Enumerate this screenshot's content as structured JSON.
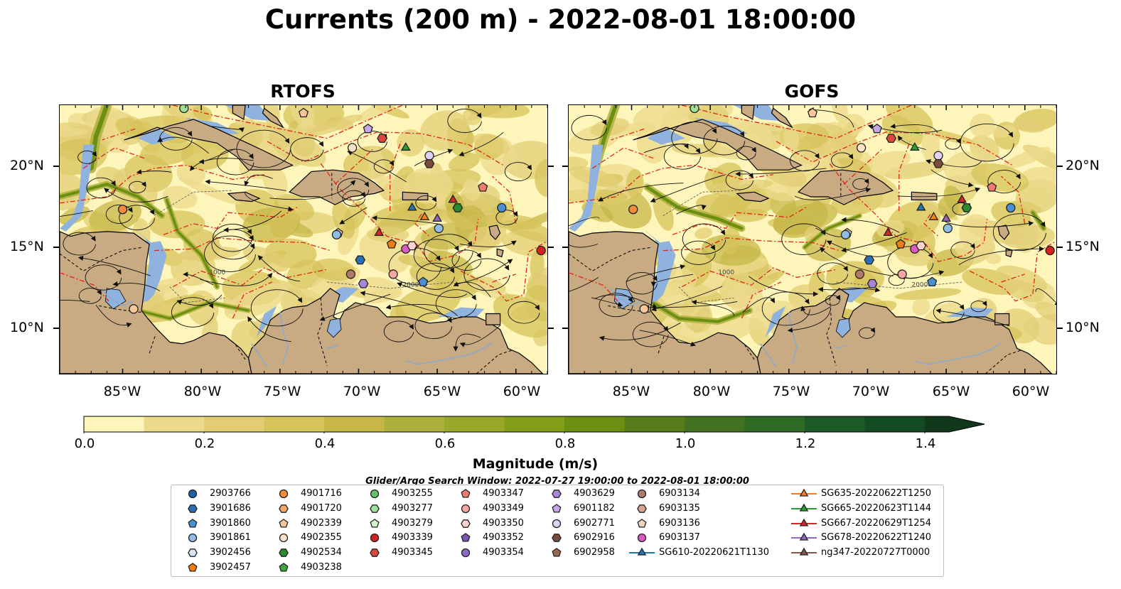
{
  "title": "Currents (200 m) - 2022-08-01 18:00:00",
  "panels": [
    {
      "title": "RTOFS"
    },
    {
      "title": "GOFS"
    }
  ],
  "x_ticks": [
    "85°W",
    "80°W",
    "75°W",
    "70°W",
    "65°W",
    "60°W"
  ],
  "y_ticks": [
    "20°N",
    "15°N",
    "10°N"
  ],
  "map_extent": {
    "lon": [
      -89,
      -58
    ],
    "lat": [
      7,
      24
    ]
  },
  "bathymetry_labels": [
    "1000",
    "2000"
  ],
  "colors": {
    "land": "#c8ab82",
    "shelf_water": "#8fb2de",
    "eez_lines": "#e2231a",
    "streamlines": "#000000"
  },
  "colorbar": {
    "label": "Magnitude (m/s)",
    "tick_labels": [
      "0.0",
      "0.2",
      "0.4",
      "0.6",
      "0.8",
      "1.0",
      "1.2",
      "1.4"
    ],
    "range": [
      0,
      1.5
    ],
    "step": 0.1,
    "extend": "max",
    "colors": [
      "#fdf5b9",
      "#ecd98c",
      "#e2cd75",
      "#d5c35b",
      "#c6b748",
      "#adb03c",
      "#98a82b",
      "#839e18",
      "#6c8f12",
      "#567d19",
      "#42721f",
      "#2f6a25",
      "#1c5a27",
      "#134b22",
      "#12381b"
    ]
  },
  "search_window": "Glider/Argo Search Window: 2022-07-27 19:00:00 to 2022-08-01 18:00:00",
  "legend": {
    "columns": [
      [
        {
          "label": "2903766",
          "marker": "circle",
          "color": "#1f5fa6"
        },
        {
          "label": "3901686",
          "marker": "hexagon",
          "color": "#2a6fb5"
        },
        {
          "label": "3901860",
          "marker": "pentagon",
          "color": "#4a8fd0"
        },
        {
          "label": "3901861",
          "marker": "circle",
          "color": "#8fbde8"
        },
        {
          "label": "3902456",
          "marker": "hexagon",
          "color": "#d6e8f7"
        },
        {
          "label": "3902457",
          "marker": "pentagon",
          "color": "#f07d0e"
        }
      ],
      [
        {
          "label": "4901716",
          "marker": "circle",
          "color": "#f08c3a"
        },
        {
          "label": "4901720",
          "marker": "hexagon",
          "color": "#f6a665"
        },
        {
          "label": "4902339",
          "marker": "pentagon",
          "color": "#f9c59a"
        },
        {
          "label": "4902355",
          "marker": "circle",
          "color": "#fde2c6"
        },
        {
          "label": "4902534",
          "marker": "hexagon",
          "color": "#2b8a2e"
        },
        {
          "label": "4903238",
          "marker": "pentagon",
          "color": "#3ea63a"
        }
      ],
      [
        {
          "label": "4903255",
          "marker": "circle",
          "color": "#66c266"
        },
        {
          "label": "4903277",
          "marker": "hexagon",
          "color": "#9fe09a"
        },
        {
          "label": "4903279",
          "marker": "pentagon",
          "color": "#d5f5cf"
        },
        {
          "label": "4903339",
          "marker": "circle",
          "color": "#d42020"
        },
        {
          "label": "4903345",
          "marker": "hexagon",
          "color": "#d94a3c"
        }
      ],
      [
        {
          "label": "4903347",
          "marker": "pentagon",
          "color": "#ef7a70"
        },
        {
          "label": "4903349",
          "marker": "circle",
          "color": "#f6a5a0"
        },
        {
          "label": "4903350",
          "marker": "hexagon",
          "color": "#fcd3cf"
        },
        {
          "label": "4903352",
          "marker": "pentagon",
          "color": "#7b55b0"
        },
        {
          "label": "4903354",
          "marker": "circle",
          "color": "#8f6ac4"
        }
      ],
      [
        {
          "label": "4903629",
          "marker": "hexagon",
          "color": "#a885d8"
        },
        {
          "label": "6901182",
          "marker": "pentagon",
          "color": "#c5a8ea"
        },
        {
          "label": "6902771",
          "marker": "circle",
          "color": "#e2d1f6"
        },
        {
          "label": "6902916",
          "marker": "hexagon",
          "color": "#7a4b3a"
        },
        {
          "label": "6902958",
          "marker": "pentagon",
          "color": "#9a6a56"
        }
      ],
      [
        {
          "label": "6903134",
          "marker": "circle",
          "color": "#b07a6a"
        },
        {
          "label": "6903135",
          "marker": "hexagon",
          "color": "#d9a493"
        },
        {
          "label": "6903136",
          "marker": "pentagon",
          "color": "#f3d2c6"
        },
        {
          "label": "6903137",
          "marker": "circle",
          "color": "#d85cbf"
        },
        {
          "label": "SG610-20220621T1130",
          "marker": "triangle-line",
          "color": "#1f77b4"
        }
      ],
      [
        {
          "label": "SG635-20220622T1250",
          "marker": "triangle-line",
          "color": "#ff7f0e"
        },
        {
          "label": "SG665-20220623T1144",
          "marker": "triangle-line",
          "color": "#2ca02c"
        },
        {
          "label": "SG667-20220629T1254",
          "marker": "triangle-line",
          "color": "#d62728"
        },
        {
          "label": "SG678-20220622T1240",
          "marker": "triangle-line",
          "color": "#9467bd"
        },
        {
          "label": "ng347-20220727T0000",
          "marker": "triangle-line",
          "color": "#8c564b"
        }
      ]
    ]
  },
  "floats": [
    {
      "marker": "circle",
      "color": "#f08c3a",
      "lon": -85,
      "lat": 17.4
    },
    {
      "marker": "circle",
      "color": "#fde2c6",
      "lon": -70.4,
      "lat": 21.3
    },
    {
      "marker": "pentagon",
      "color": "#c5a8ea",
      "lon": -69.4,
      "lat": 22.5
    },
    {
      "marker": "hexagon",
      "color": "#d94a3c",
      "lon": -68.5,
      "lat": 21.9
    },
    {
      "marker": "triangle",
      "color": "#2ca02c",
      "lon": -67,
      "lat": 21.3
    },
    {
      "marker": "circle",
      "color": "#e2d1f6",
      "lon": -65.5,
      "lat": 20.8
    },
    {
      "marker": "hexagon",
      "color": "#7a4b3a",
      "lon": -65.5,
      "lat": 20.3
    },
    {
      "marker": "triangle",
      "color": "#1f77b4",
      "lon": -66.6,
      "lat": 17.5
    },
    {
      "marker": "triangle",
      "color": "#ff7f0e",
      "lon": -65.8,
      "lat": 16.9
    },
    {
      "marker": "triangle",
      "color": "#9467bd",
      "lon": -65.0,
      "lat": 16.8
    },
    {
      "marker": "triangle",
      "color": "#d62728",
      "lon": -64.0,
      "lat": 18.0
    },
    {
      "marker": "hexagon",
      "color": "#2b8a2e",
      "lon": -63.7,
      "lat": 17.5
    },
    {
      "marker": "pentagon",
      "color": "#ef7a70",
      "lon": -62.1,
      "lat": 18.8
    },
    {
      "marker": "circle",
      "color": "#4a8fd0",
      "lon": -60.9,
      "lat": 17.5
    },
    {
      "marker": "circle",
      "color": "#8fbde8",
      "lon": -64.9,
      "lat": 16.2
    },
    {
      "marker": "triangle",
      "color": "#d62728",
      "lon": -68.7,
      "lat": 15.9
    },
    {
      "marker": "pentagon",
      "color": "#f07d0e",
      "lon": -67.9,
      "lat": 15.2
    },
    {
      "marker": "circle",
      "color": "#d85cbf",
      "lon": -67.0,
      "lat": 14.9
    },
    {
      "marker": "hexagon",
      "color": "#fcd3cf",
      "lon": -66.6,
      "lat": 15.1
    },
    {
      "marker": "hexagon",
      "color": "#2a6fb5",
      "lon": -69.9,
      "lat": 14.2
    },
    {
      "marker": "circle",
      "color": "#b07a6a",
      "lon": -70.5,
      "lat": 13.3
    },
    {
      "marker": "circle",
      "color": "#f6a5a0",
      "lon": -67.8,
      "lat": 13.3
    },
    {
      "marker": "hexagon",
      "color": "#a885d8",
      "lon": -69.7,
      "lat": 12.7
    },
    {
      "marker": "pentagon",
      "color": "#4a8fd0",
      "lon": -65.9,
      "lat": 12.8
    },
    {
      "marker": "circle",
      "color": "#d42020",
      "lon": -58.4,
      "lat": 14.8
    },
    {
      "marker": "pentagon",
      "color": "#f3d2c6",
      "lon": -71.3,
      "lat": 15.9
    },
    {
      "marker": "circle",
      "color": "#9fe09a",
      "lon": -81.1,
      "lat": 23.8
    },
    {
      "marker": "pentagon",
      "color": "#f9c59a",
      "lon": -73.5,
      "lat": 23.5
    },
    {
      "marker": "circle",
      "color": "#f9c59a",
      "lon": -84.3,
      "lat": 11.1
    },
    {
      "marker": "circle",
      "color": "#8fbde8",
      "lon": -71.4,
      "lat": 15.8
    }
  ]
}
